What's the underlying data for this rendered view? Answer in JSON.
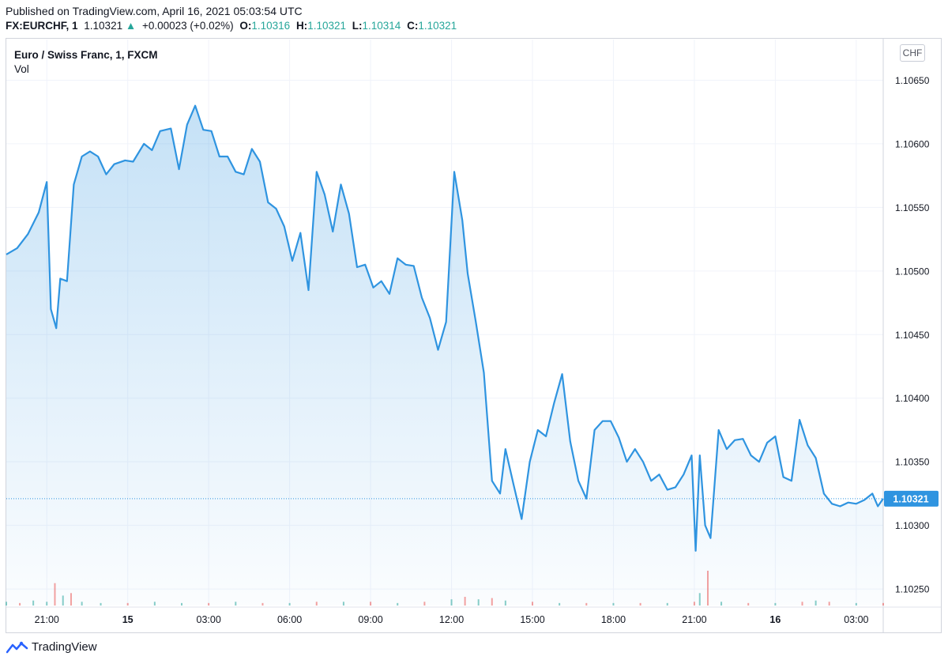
{
  "header": {
    "published": "Published on TradingView.com, April 16, 2021 05:03:54 UTC",
    "symbol": "FX:EURCHF, 1",
    "last": "1.10321",
    "arrow": "▲",
    "change": "+0.00023 (+0.02%)",
    "o_label": "O:",
    "o_value": "1.10316",
    "h_label": "H:",
    "h_value": "1.10321",
    "l_label": "L:",
    "l_value": "1.10314",
    "c_label": "C:",
    "c_value": "1.10321"
  },
  "legend": {
    "title": "Euro / Swiss Franc, 1, FXCM",
    "volume": "Vol"
  },
  "currency_button": "CHF",
  "footer": {
    "brand": "TradingView"
  },
  "colors": {
    "line": "#2f94e0",
    "up": "#26a69a",
    "down": "#ef5350",
    "price_label_bg": "#2f94e0",
    "grid": "#f0f3fa"
  },
  "chart_data": {
    "type": "area",
    "title": "Euro / Swiss Franc, 1, FXCM",
    "xlabel": "",
    "ylabel": "",
    "ylim": [
      1.10237,
      1.10682
    ],
    "y_ticks": [
      1.1025,
      1.103,
      1.1035,
      1.104,
      1.1045,
      1.105,
      1.1055,
      1.106,
      1.1065
    ],
    "y_tick_labels": [
      "1.10250",
      "1.10300",
      "1.10350",
      "1.10400",
      "1.10450",
      "1.10500",
      "1.10550",
      "1.10600",
      "1.10650"
    ],
    "xlim": [
      19.5,
      52.0
    ],
    "x_unit": "hours since April 14, 2021 00:00 UTC",
    "x_ticks": [
      21,
      24,
      27,
      30,
      33,
      36,
      39,
      42,
      45,
      48,
      51
    ],
    "x_tick_labels": [
      "21:00",
      "15",
      "03:00",
      "06:00",
      "09:00",
      "12:00",
      "15:00",
      "18:00",
      "21:00",
      "16",
      "03:00"
    ],
    "x_tick_bold": [
      false,
      true,
      false,
      false,
      false,
      false,
      false,
      false,
      false,
      true,
      false
    ],
    "last_price": 1.10321,
    "last_price_label": "1.10321",
    "series": [
      {
        "name": "EURCHF",
        "x": [
          19.5,
          19.9,
          20.3,
          20.7,
          21.0,
          21.15,
          21.35,
          21.5,
          21.75,
          22.0,
          22.3,
          22.6,
          22.9,
          23.2,
          23.5,
          23.9,
          24.2,
          24.6,
          24.9,
          25.2,
          25.6,
          25.9,
          26.2,
          26.5,
          26.8,
          27.1,
          27.4,
          27.7,
          28.0,
          28.3,
          28.6,
          28.9,
          29.2,
          29.5,
          29.8,
          30.1,
          30.4,
          30.7,
          31.0,
          31.3,
          31.6,
          31.9,
          32.2,
          32.5,
          32.8,
          33.1,
          33.4,
          33.7,
          34.0,
          34.3,
          34.6,
          34.9,
          35.2,
          35.5,
          35.8,
          36.1,
          36.4,
          36.6,
          36.9,
          37.2,
          37.5,
          37.8,
          38.0,
          38.3,
          38.6,
          38.9,
          39.2,
          39.5,
          39.8,
          40.1,
          40.4,
          40.7,
          41.0,
          41.3,
          41.6,
          41.9,
          42.2,
          42.5,
          42.8,
          43.1,
          43.4,
          43.7,
          44.0,
          44.3,
          44.6,
          44.9,
          45.05,
          45.2,
          45.4,
          45.6,
          45.9,
          46.2,
          46.5,
          46.8,
          47.1,
          47.4,
          47.7,
          48.0,
          48.3,
          48.6,
          48.9,
          49.2,
          49.5,
          49.8,
          50.1,
          50.4,
          50.7,
          51.0,
          51.3,
          51.6,
          51.8,
          52.0
        ],
        "values": [
          1.10513,
          1.10518,
          1.10529,
          1.10546,
          1.1057,
          1.1047,
          1.10455,
          1.10494,
          1.10492,
          1.10568,
          1.1059,
          1.10594,
          1.1059,
          1.10576,
          1.10584,
          1.10587,
          1.10586,
          1.106,
          1.10595,
          1.1061,
          1.10612,
          1.1058,
          1.10615,
          1.1063,
          1.10611,
          1.1061,
          1.1059,
          1.1059,
          1.10578,
          1.10576,
          1.10596,
          1.10586,
          1.10554,
          1.10549,
          1.10535,
          1.10508,
          1.1053,
          1.10485,
          1.10578,
          1.1056,
          1.10531,
          1.10568,
          1.10545,
          1.10503,
          1.10505,
          1.10487,
          1.10492,
          1.10482,
          1.1051,
          1.10505,
          1.10504,
          1.10479,
          1.10463,
          1.10438,
          1.1046,
          1.10578,
          1.1054,
          1.10498,
          1.1046,
          1.1042,
          1.10335,
          1.10325,
          1.1036,
          1.10332,
          1.10305,
          1.1035,
          1.10375,
          1.1037,
          1.10396,
          1.10419,
          1.10366,
          1.10335,
          1.10321,
          1.10375,
          1.10382,
          1.10382,
          1.10369,
          1.1035,
          1.1036,
          1.1035,
          1.10335,
          1.1034,
          1.10328,
          1.1033,
          1.1034,
          1.10355,
          1.1028,
          1.10355,
          1.103,
          1.1029,
          1.10375,
          1.1036,
          1.10367,
          1.10368,
          1.10355,
          1.1035,
          1.10365,
          1.1037,
          1.10338,
          1.10335,
          1.10383,
          1.10363,
          1.10353,
          1.10325,
          1.10317,
          1.10315,
          1.10318,
          1.10317,
          1.1032,
          1.10325,
          1.10315,
          1.10321
        ]
      },
      {
        "name": "Vol",
        "type": "bar",
        "x": [
          19.5,
          20.0,
          20.5,
          21.0,
          21.3,
          21.6,
          21.9,
          22.3,
          23.0,
          24.0,
          25.0,
          26.0,
          27.0,
          28.0,
          29.0,
          30.0,
          31.0,
          32.0,
          33.0,
          34.0,
          35.0,
          36.0,
          36.5,
          37.0,
          37.5,
          38.0,
          39.0,
          40.0,
          41.0,
          42.0,
          43.0,
          44.0,
          45.0,
          45.2,
          45.5,
          46.0,
          47.0,
          48.0,
          49.0,
          49.5,
          50.0,
          51.0,
          52.0
        ],
        "values": [
          3,
          2,
          4,
          3,
          18,
          8,
          10,
          3,
          2,
          2,
          3,
          2,
          2,
          3,
          2,
          2,
          3,
          3,
          3,
          2,
          3,
          5,
          7,
          5,
          6,
          4,
          3,
          2,
          2,
          2,
          2,
          2,
          3,
          10,
          28,
          3,
          2,
          2,
          3,
          4,
          3,
          2,
          2
        ],
        "up": [
          true,
          false,
          true,
          true,
          false,
          true,
          false,
          true,
          true,
          false,
          true,
          true,
          false,
          true,
          false,
          true,
          false,
          true,
          false,
          true,
          false,
          true,
          false,
          true,
          false,
          true,
          false,
          true,
          false,
          true,
          false,
          true,
          false,
          true,
          false,
          true,
          false,
          true,
          false,
          true,
          false,
          true,
          false
        ]
      }
    ]
  }
}
